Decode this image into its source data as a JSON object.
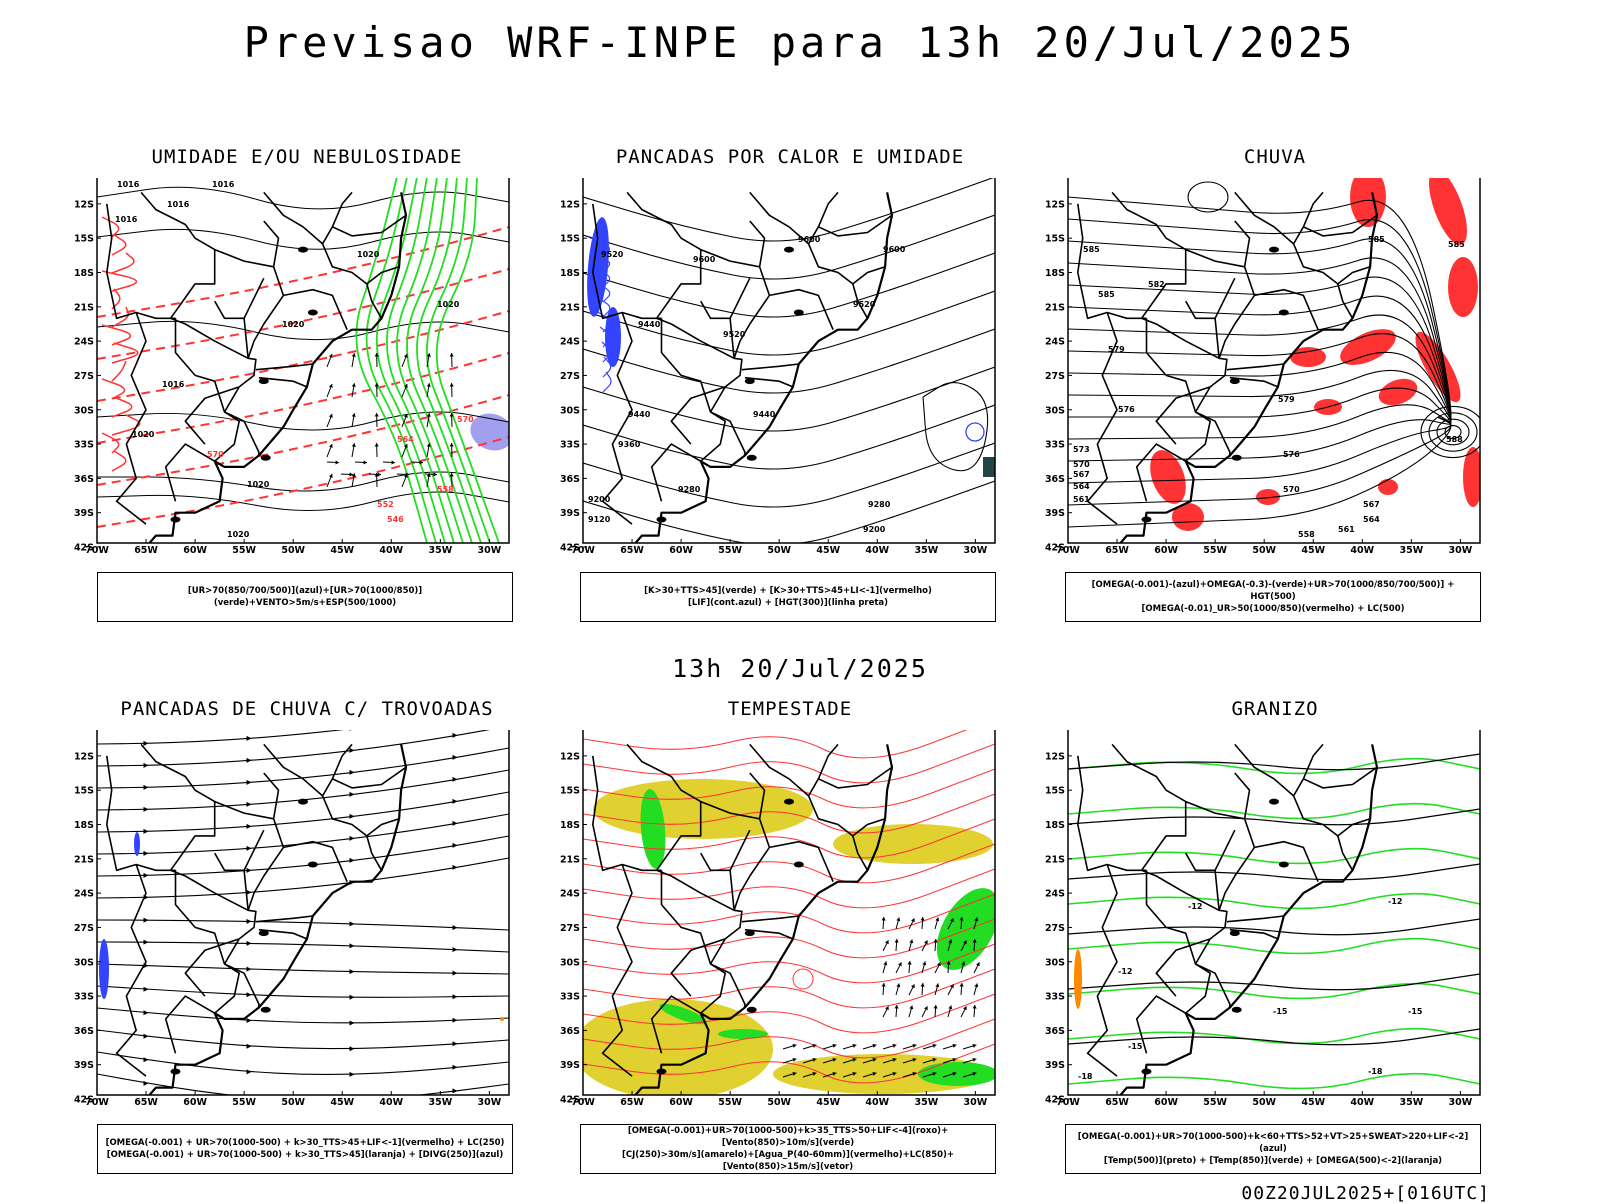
{
  "main_title": "Previsao WRF-INPE  para 13h 20/Jul/2025",
  "mid_time": "13h 20/Jul/2025",
  "footer": "00Z20JUL2025+[016UTC]",
  "axis": {
    "y_labels": [
      "12S",
      "15S",
      "18S",
      "21S",
      "24S",
      "27S",
      "30S",
      "33S",
      "36S",
      "39S",
      "42S"
    ],
    "x_labels": [
      "70W",
      "65W",
      "60W",
      "55W",
      "50W",
      "45W",
      "40W",
      "35W",
      "30W"
    ]
  },
  "panels": [
    {
      "title": "UMIDADE E/OU NEBULOSIDADE",
      "legend": [
        "[UR>70(850/700/500)](azul)+[UR>70(1000/850)](verde)+VENTO>5m/s+ESP(500/1000)"
      ],
      "contour_labels": [
        "1016",
        "1016",
        "1016",
        "1016",
        "1020",
        "1020",
        "1020",
        "1020",
        "1020",
        "570",
        "570",
        "564",
        "558",
        "552",
        "546",
        "1016",
        "1020",
        "1020"
      ]
    },
    {
      "title": "PANCADAS POR CALOR E UMIDADE",
      "legend": [
        "[K>30+TTS>45](verde) + [K>30+TTS>45+LI<-1](vermelho)",
        "[LIF](cont.azul) + [HGT(300)](linha preta)"
      ],
      "contour_labels": [
        "9520",
        "9600",
        "9600",
        "9600",
        "9520",
        "9520",
        "9440",
        "9440",
        "9440",
        "9360",
        "9280",
        "9280",
        "9200",
        "9200",
        "9120"
      ]
    },
    {
      "title": "CHUVA",
      "legend": [
        "[OMEGA(-0.001)-(azul)+OMEGA(-0.3)-(verde)+UR>70(1000/850/700/500)] + HGT(500)",
        "[OMEGA(-0.01)_UR>50(1000/850)(vermelho) + LC(500)"
      ],
      "contour_labels": [
        "585",
        "585",
        "582",
        "585",
        "579",
        "579",
        "576",
        "576",
        "573",
        "570",
        "570",
        "567",
        "567",
        "564",
        "564",
        "561",
        "561",
        "558",
        "588",
        "585"
      ]
    },
    {
      "title": "PANCADAS DE CHUVA C/ TROVOADAS",
      "legend": [
        "[OMEGA(-0.001) + UR>70(1000-500) + k>30_TTS>45+LIF<-1](vermelho) + LC(250)",
        "[OMEGA(-0.001) + UR>70(1000-500) + k>30_TTS>45](laranja) + [DIVG(250)](azul)"
      ],
      "contour_labels": []
    },
    {
      "title": "TEMPESTADE",
      "legend": [
        "[OMEGA(-0.001)+UR>70(1000-500)+k>35_TTS>50+LIF<-4](roxo)+[Vento(850)>10m/s](verde)",
        "[CJ(250)>30m/s](amarelo)+[Agua_P(40-60mm)](vermelho)+LC(850)+[Vento(850)>15m/s](vetor)"
      ],
      "contour_labels": []
    },
    {
      "title": "GRANIZO",
      "legend": [
        "[OMEGA(-0.001)+UR>70(1000-500)+k<60+TTS>52+VT>25+SWEAT>220+LIF<-2](azul)",
        "[Temp(500)](preto) + [Temp(850)](verde) + [OMEGA(500)<-2](laranja)"
      ],
      "contour_labels": [
        "-12",
        "-12",
        "-12",
        "-15",
        "-15",
        "-15",
        "-18",
        "-18"
      ]
    }
  ],
  "colors": {
    "red": "#ff3333",
    "green": "#22dd22",
    "blue": "#3344ff",
    "yellow": "#e0d030",
    "lavender": "#a0a0ee",
    "orange": "#ff8800",
    "black": "#000000"
  }
}
